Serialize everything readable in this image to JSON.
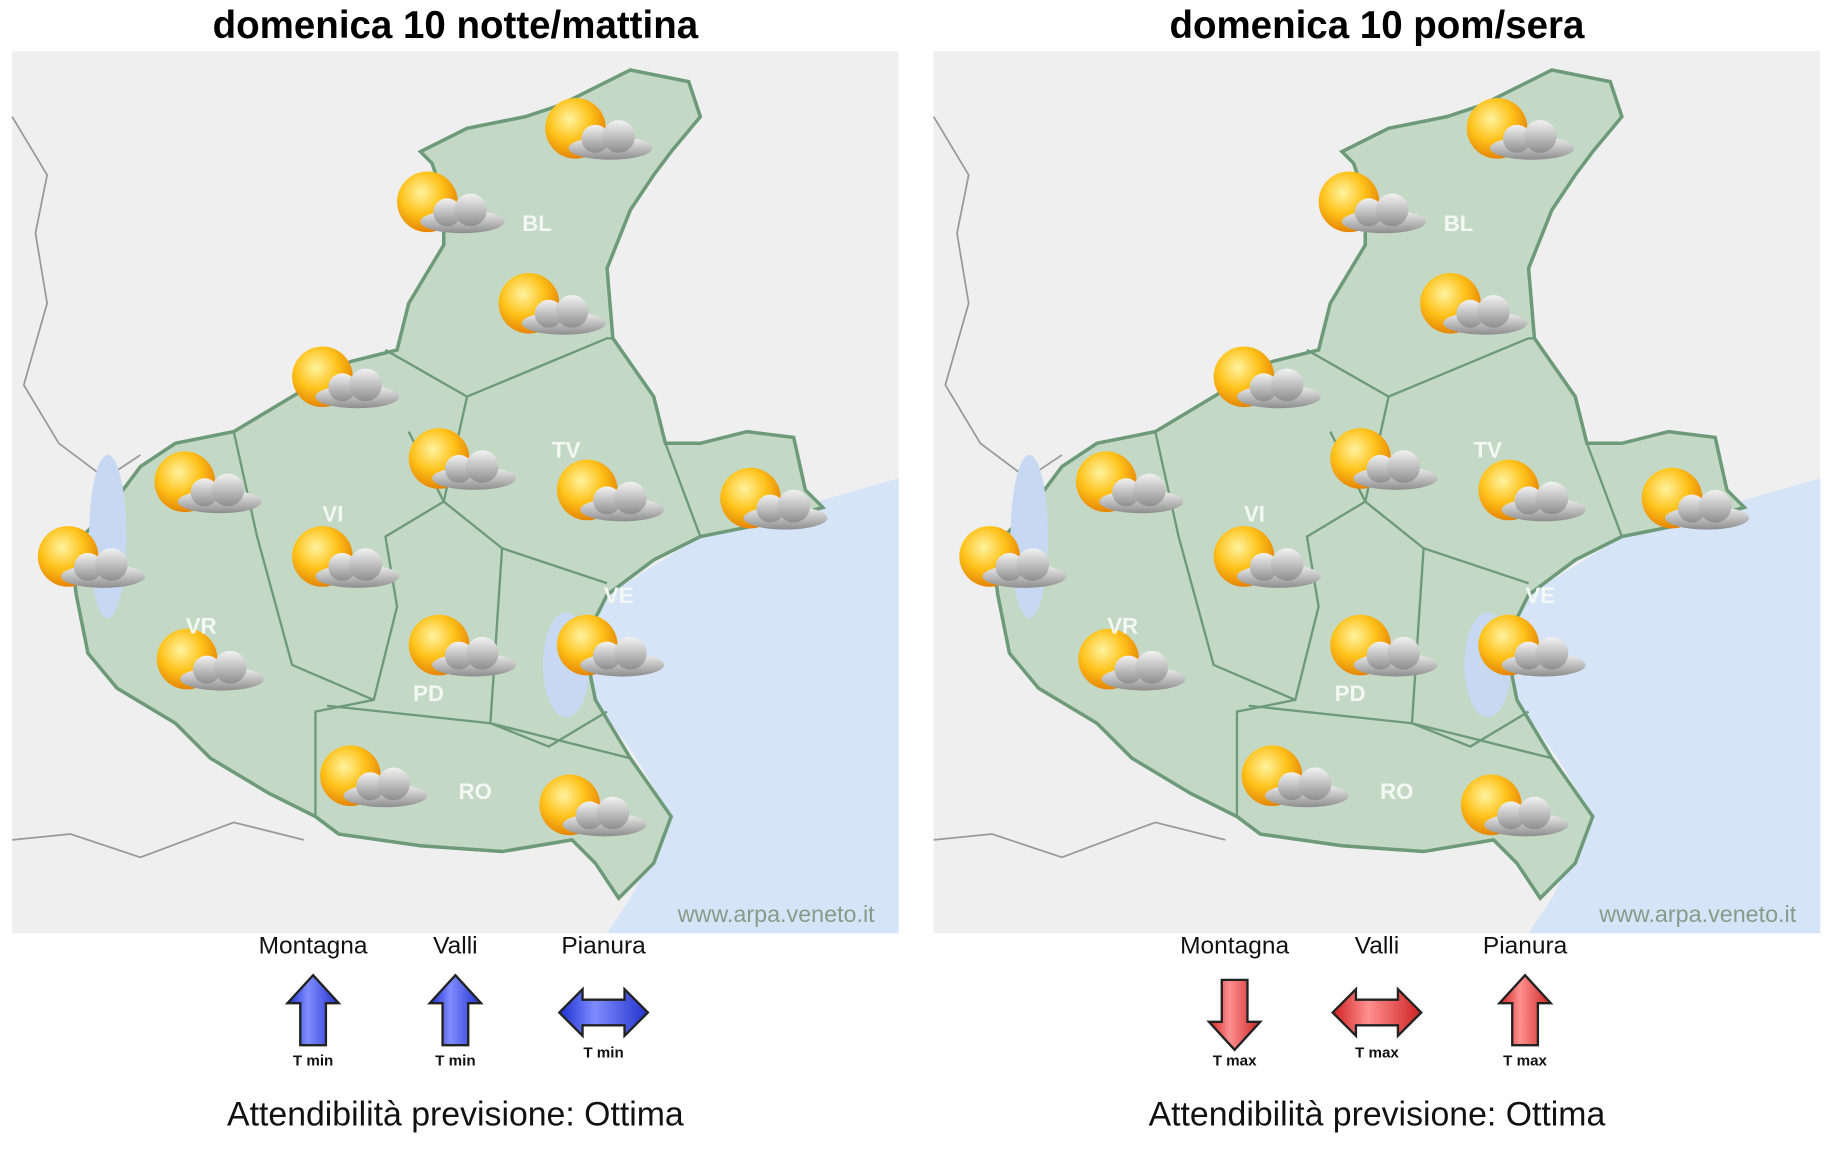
{
  "panels": [
    {
      "title": "domenica 10 notte/mattina",
      "provinces": [
        "BL",
        "TV",
        "VI",
        "VR",
        "VE",
        "PD",
        "RO"
      ],
      "watermark": "www.arpa.veneto.it",
      "trends": [
        {
          "zone": "Montagna",
          "label": "T min"
        },
        {
          "zone": "Valli",
          "label": "T min"
        },
        {
          "zone": "Pianura",
          "label": "T min"
        }
      ],
      "reliability": "Attendibilità previsione: Ottima"
    },
    {
      "title": "domenica 10 pom/sera",
      "provinces": [
        "BL",
        "TV",
        "VI",
        "VR",
        "VE",
        "PD",
        "RO"
      ],
      "watermark": "www.arpa.veneto.it",
      "trends": [
        {
          "zone": "Montagna",
          "label": "T max"
        },
        {
          "zone": "Valli",
          "label": "T max"
        },
        {
          "zone": "Pianura",
          "label": "T max"
        }
      ],
      "reliability": "Attendibilità previsione: Ottima"
    }
  ]
}
